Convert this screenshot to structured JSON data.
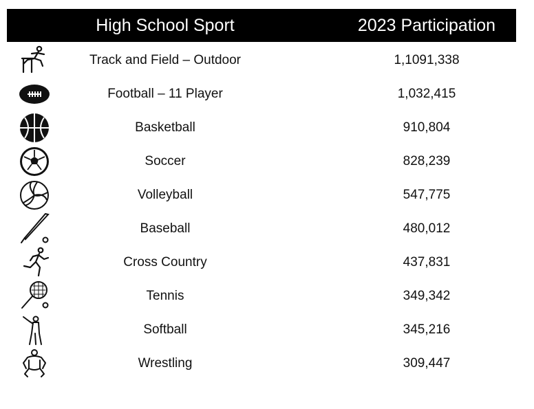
{
  "chart_data": {
    "type": "table",
    "columns": [
      "High School Sport",
      "2023 Participation"
    ],
    "rows": [
      {
        "icon": "hurdler-icon",
        "sport": "Track and Field – Outdoor",
        "participation": "1,1091,338"
      },
      {
        "icon": "football-icon",
        "sport": "Football – 11 Player",
        "participation": "1,032,415"
      },
      {
        "icon": "basketball-icon",
        "sport": "Basketball",
        "participation": "910,804"
      },
      {
        "icon": "soccer-ball-icon",
        "sport": "Soccer",
        "participation": "828,239"
      },
      {
        "icon": "volleyball-icon",
        "sport": "Volleyball",
        "participation": "547,775"
      },
      {
        "icon": "baseball-bat-icon",
        "sport": "Baseball",
        "participation": "480,012"
      },
      {
        "icon": "runner-icon",
        "sport": "Cross Country",
        "participation": "437,831"
      },
      {
        "icon": "tennis-racket-icon",
        "sport": "Tennis",
        "participation": "349,342"
      },
      {
        "icon": "softball-batter-icon",
        "sport": "Softball",
        "participation": "345,216"
      },
      {
        "icon": "wrestler-icon",
        "sport": "Wrestling",
        "participation": "309,447"
      }
    ]
  },
  "colors": {
    "header_bg": "#000000",
    "header_text": "#ffffff",
    "text": "#111111"
  }
}
